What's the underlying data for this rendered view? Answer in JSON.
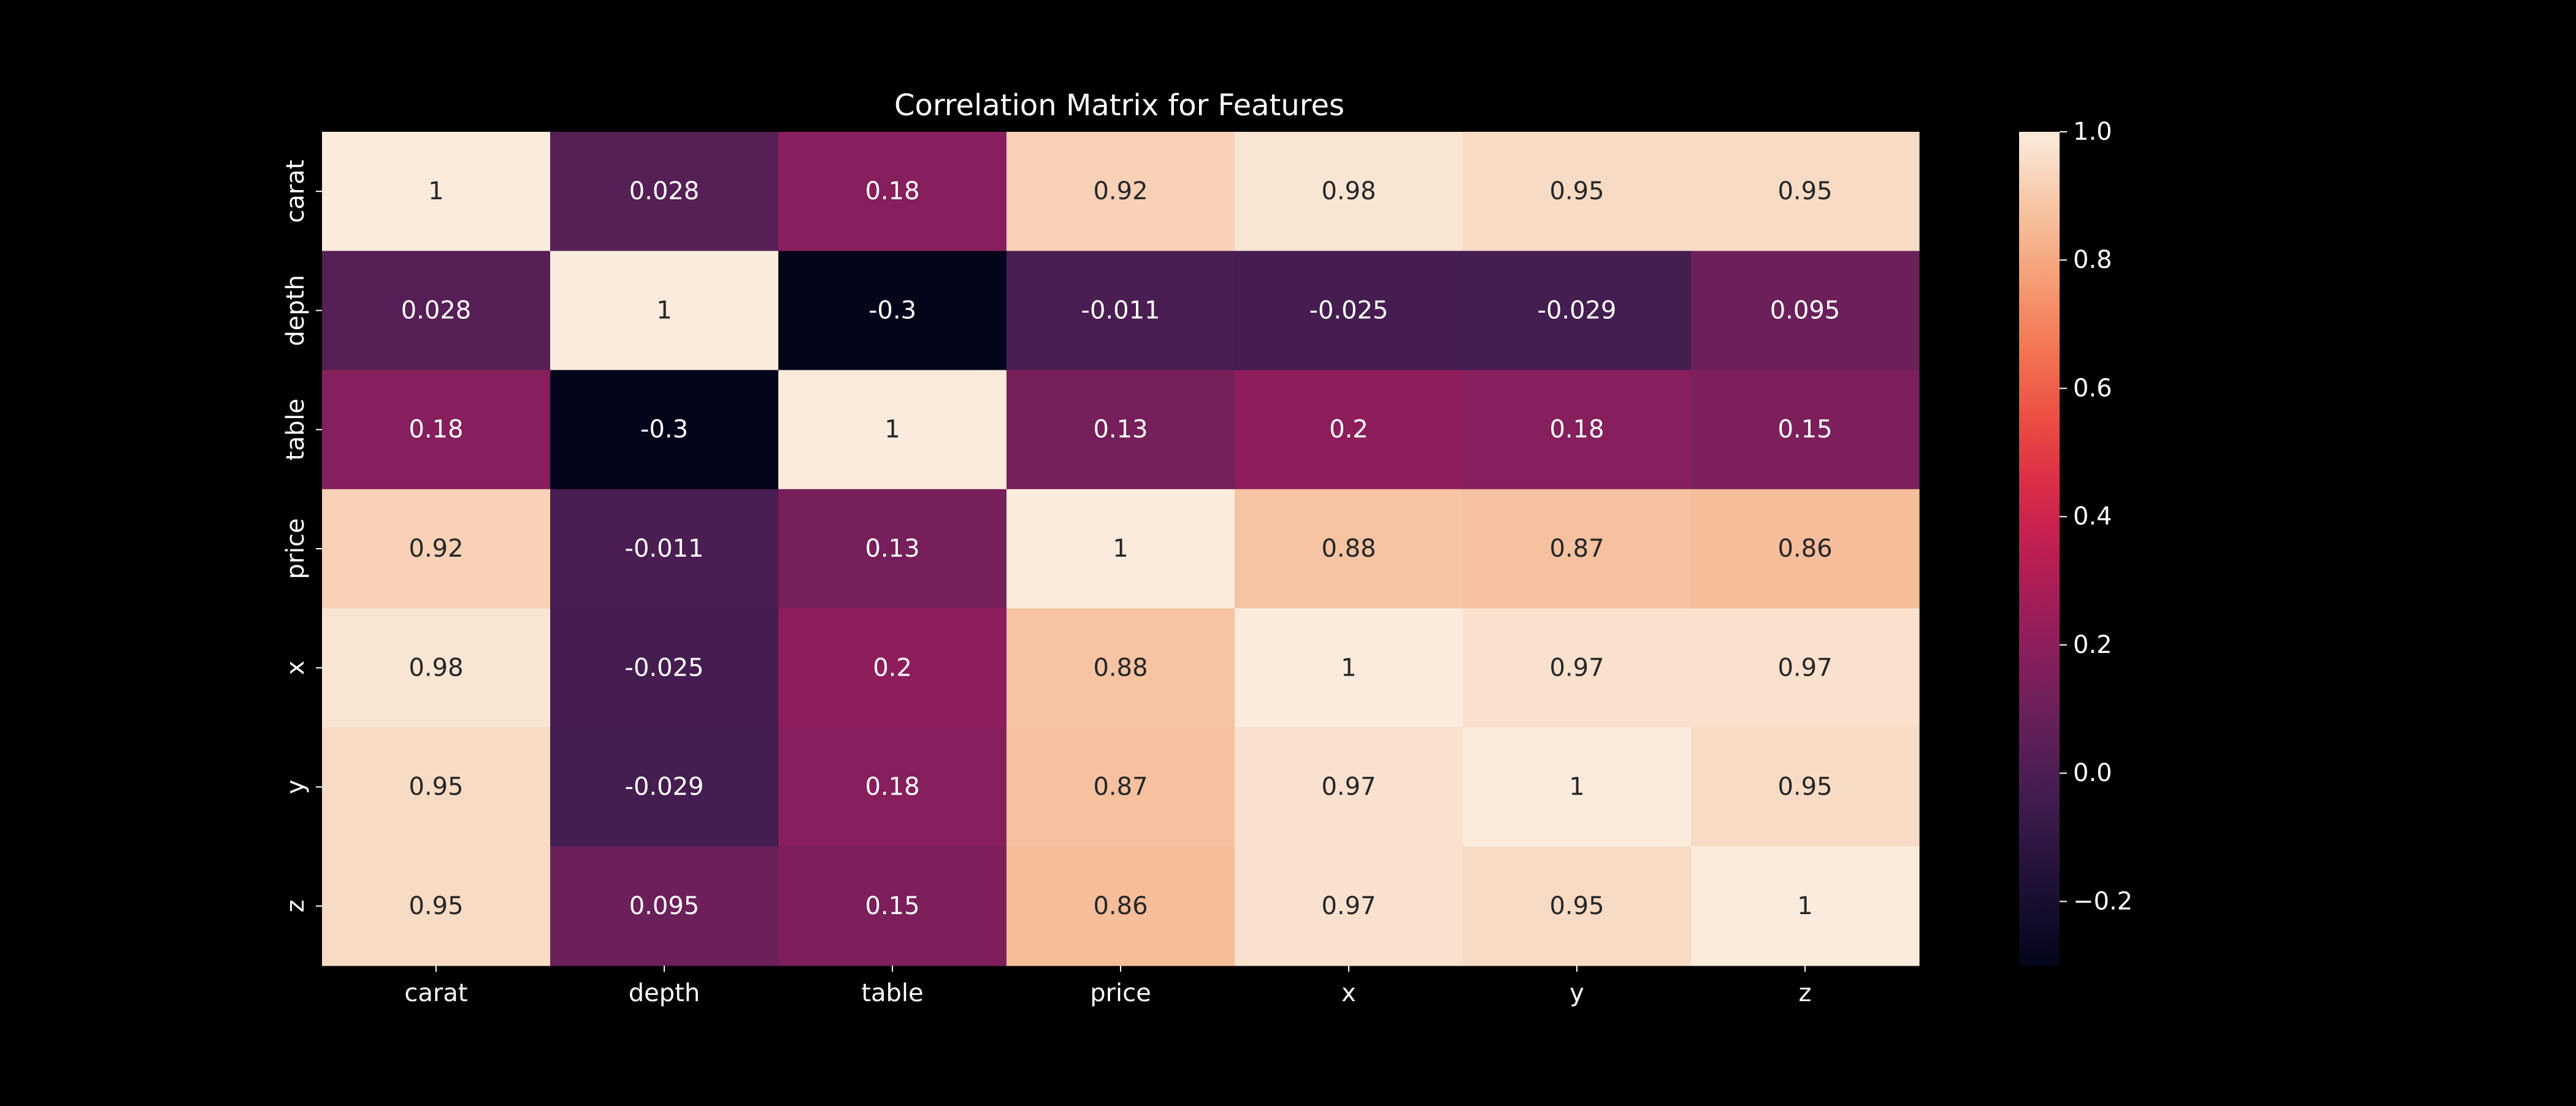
{
  "chart_data": {
    "type": "heatmap",
    "title": "Correlation Matrix for Features",
    "x_labels": [
      "carat",
      "depth",
      "table",
      "price",
      "x",
      "y",
      "z"
    ],
    "y_labels": [
      "carat",
      "depth",
      "table",
      "price",
      "x",
      "y",
      "z"
    ],
    "values": [
      [
        1,
        0.028,
        0.18,
        0.92,
        0.98,
        0.95,
        0.95
      ],
      [
        0.028,
        1,
        -0.3,
        -0.011,
        -0.025,
        -0.029,
        0.095
      ],
      [
        0.18,
        -0.3,
        1,
        0.13,
        0.2,
        0.18,
        0.15
      ],
      [
        0.92,
        -0.011,
        0.13,
        1,
        0.88,
        0.87,
        0.86
      ],
      [
        0.98,
        -0.025,
        0.2,
        0.88,
        1,
        0.97,
        0.97
      ],
      [
        0.95,
        -0.029,
        0.18,
        0.87,
        0.97,
        1,
        0.95
      ],
      [
        0.95,
        0.095,
        0.15,
        0.86,
        0.97,
        0.95,
        1
      ]
    ],
    "annotations": [
      [
        "1",
        "0.028",
        "0.18",
        "0.92",
        "0.98",
        "0.95",
        "0.95"
      ],
      [
        "0.028",
        "1",
        "-0.3",
        "-0.011",
        "-0.025",
        "-0.029",
        "0.095"
      ],
      [
        "0.18",
        "-0.3",
        "1",
        "0.13",
        "0.2",
        "0.18",
        "0.15"
      ],
      [
        "0.92",
        "-0.011",
        "0.13",
        "1",
        "0.88",
        "0.87",
        "0.86"
      ],
      [
        "0.98",
        "-0.025",
        "0.2",
        "0.88",
        "1",
        "0.97",
        "0.97"
      ],
      [
        "0.95",
        "-0.029",
        "0.18",
        "0.87",
        "0.97",
        "1",
        "0.95"
      ],
      [
        "0.95",
        "0.095",
        "0.15",
        "0.86",
        "0.97",
        "0.95",
        "1"
      ]
    ],
    "colormap": "rocket",
    "vmin": -0.3,
    "vmax": 1.0,
    "colorbar": {
      "ticks": [
        1.0,
        0.8,
        0.6,
        0.4,
        0.2,
        0.0,
        -0.2
      ],
      "tick_labels": [
        "1.0",
        "0.8",
        "0.6",
        "0.4",
        "0.2",
        "0.0",
        "−0.2"
      ]
    },
    "grid": false,
    "background": "#000000",
    "text_color": "#ffffff"
  }
}
